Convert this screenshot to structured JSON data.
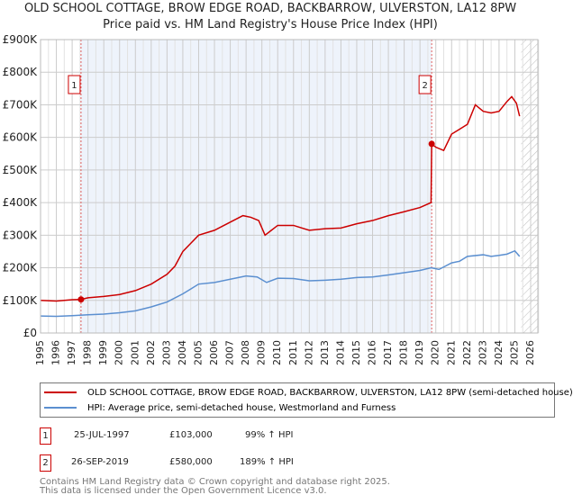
{
  "title": "OLD SCHOOL COTTAGE, BROW EDGE ROAD, BACKBARROW, ULVERSTON, LA12 8PW",
  "subtitle": "Price paid vs. HM Land Registry's House Price Index (HPI)",
  "colors": {
    "price": "#cc0000",
    "hpi": "#5b8fd0",
    "shade": "#eef3fb"
  },
  "chart_data": {
    "type": "line",
    "xlim": [
      1995,
      2026
    ],
    "ylim": [
      0,
      900000
    ],
    "y_ticks": [
      0,
      100000,
      200000,
      300000,
      400000,
      500000,
      600000,
      700000,
      800000,
      900000
    ],
    "y_tick_labels": [
      "£0",
      "£100K",
      "£200K",
      "£300K",
      "£400K",
      "£500K",
      "£600K",
      "£700K",
      "£800K",
      "£900K"
    ],
    "x_ticks": [
      "1995",
      "1996",
      "1997",
      "1998",
      "1999",
      "2000",
      "2001",
      "2002",
      "2003",
      "2004",
      "2005",
      "2006",
      "2007",
      "2008",
      "2009",
      "2010",
      "2011",
      "2012",
      "2013",
      "2014",
      "2015",
      "2016",
      "2017",
      "2018",
      "2019",
      "2020",
      "2021",
      "2022",
      "2023",
      "2024",
      "2025",
      "2026"
    ],
    "grid": true,
    "series": [
      {
        "name": "OLD SCHOOL COTTAGE, BROW EDGE ROAD, BACKBARROW, ULVERSTON, LA12 8PW (semi-detached house)",
        "color": "#cc0000",
        "x": [
          1995,
          1996,
          1997,
          1997.56,
          1998,
          1999,
          2000,
          2001,
          2002,
          2003,
          2003.5,
          2004,
          2004.5,
          2005,
          2006,
          2007,
          2007.8,
          2008.3,
          2008.8,
          2009.2,
          2009.6,
          2010,
          2011,
          2012,
          2013,
          2014,
          2015,
          2016,
          2017,
          2018,
          2019,
          2019.7,
          2019.74,
          2020,
          2020.5,
          2021,
          2021.5,
          2022,
          2022.5,
          2023,
          2023.5,
          2024,
          2024.5,
          2024.8,
          2025.1,
          2025.3
        ],
        "y": [
          100000,
          98000,
          102000,
          103000,
          108000,
          112000,
          118000,
          130000,
          150000,
          180000,
          205000,
          250000,
          275000,
          300000,
          315000,
          340000,
          360000,
          355000,
          345000,
          300000,
          315000,
          330000,
          330000,
          315000,
          320000,
          322000,
          335000,
          345000,
          360000,
          372000,
          385000,
          400000,
          580000,
          570000,
          560000,
          610000,
          625000,
          640000,
          700000,
          680000,
          675000,
          680000,
          710000,
          725000,
          705000,
          665000
        ]
      },
      {
        "name": "HPI: Average price, semi-detached house, Westmorland and Furness",
        "color": "#5b8fd0",
        "x": [
          1995,
          1996,
          1997,
          1998,
          1999,
          2000,
          2001,
          2002,
          2003,
          2004,
          2004.5,
          2005,
          2006,
          2007,
          2008,
          2008.7,
          2009.3,
          2010,
          2011,
          2012,
          2013,
          2014,
          2015,
          2016,
          2017,
          2018,
          2019,
          2019.7,
          2020.2,
          2021,
          2021.5,
          2022,
          2023,
          2023.5,
          2024,
          2024.5,
          2025,
          2025.3
        ],
        "y": [
          52000,
          51000,
          53000,
          56000,
          58000,
          62000,
          68000,
          80000,
          95000,
          120000,
          135000,
          150000,
          155000,
          165000,
          175000,
          172000,
          155000,
          168000,
          167000,
          160000,
          162000,
          165000,
          170000,
          172000,
          178000,
          185000,
          192000,
          200000,
          195000,
          215000,
          220000,
          235000,
          240000,
          235000,
          238000,
          242000,
          252000,
          235000
        ]
      }
    ],
    "annotations": [
      {
        "label": "1",
        "x": 1997.56
      },
      {
        "label": "2",
        "x": 2019.74
      }
    ]
  },
  "legend": [
    {
      "label": "OLD SCHOOL COTTAGE, BROW EDGE ROAD, BACKBARROW, ULVERSTON, LA12 8PW (semi-detached house)",
      "color": "#cc0000"
    },
    {
      "label": "HPI: Average price, semi-detached house, Westmorland and Furness",
      "color": "#5b8fd0"
    }
  ],
  "transactions": [
    {
      "num": "1",
      "date": "25-JUL-1997",
      "price": "£103,000",
      "hpi": "99% ↑ HPI"
    },
    {
      "num": "2",
      "date": "26-SEP-2019",
      "price": "£580,000",
      "hpi": "189% ↑ HPI"
    }
  ],
  "footer": [
    "Contains HM Land Registry data © Crown copyright and database right 2025.",
    "This data is licensed under the Open Government Licence v3.0."
  ]
}
